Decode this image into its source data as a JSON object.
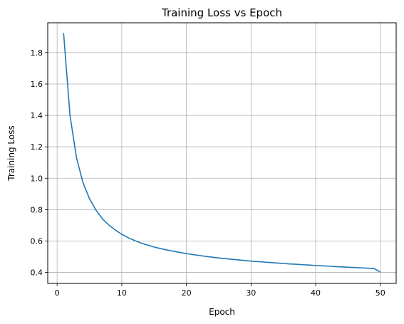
{
  "chart_data": {
    "type": "line",
    "title": "Training Loss vs Epoch",
    "xlabel": "Epoch",
    "ylabel": "Training Loss",
    "xlim": [
      -1.45,
      52.45
    ],
    "ylim": [
      0.33,
      1.99
    ],
    "xticks": [
      0,
      10,
      20,
      30,
      40,
      50
    ],
    "xtick_labels": [
      "0",
      "10",
      "20",
      "30",
      "40",
      "50"
    ],
    "yticks": [
      0.4,
      0.6,
      0.8,
      1.0,
      1.2,
      1.4,
      1.6,
      1.8
    ],
    "ytick_labels": [
      "0.4",
      "0.6",
      "0.8",
      "1.0",
      "1.2",
      "1.4",
      "1.6",
      "1.8"
    ],
    "grid": true,
    "series": [
      {
        "color": "#1f77b4",
        "x": [
          1,
          2,
          3,
          4,
          5,
          6,
          7,
          8,
          9,
          10,
          11,
          12,
          13,
          14,
          15,
          16,
          17,
          18,
          19,
          20,
          21,
          22,
          23,
          24,
          25,
          26,
          27,
          28,
          29,
          30,
          31,
          32,
          33,
          34,
          35,
          36,
          37,
          38,
          39,
          40,
          41,
          42,
          43,
          44,
          45,
          46,
          47,
          48,
          49,
          50
        ],
        "values": [
          1.925,
          1.398,
          1.13,
          0.972,
          0.87,
          0.797,
          0.742,
          0.702,
          0.67,
          0.643,
          0.621,
          0.603,
          0.587,
          0.574,
          0.562,
          0.552,
          0.543,
          0.535,
          0.527,
          0.52,
          0.514,
          0.508,
          0.502,
          0.497,
          0.492,
          0.488,
          0.484,
          0.48,
          0.476,
          0.472,
          0.469,
          0.466,
          0.463,
          0.46,
          0.457,
          0.454,
          0.452,
          0.449,
          0.447,
          0.444,
          0.442,
          0.44,
          0.437,
          0.435,
          0.433,
          0.431,
          0.429,
          0.427,
          0.425,
          0.403
        ]
      }
    ]
  }
}
